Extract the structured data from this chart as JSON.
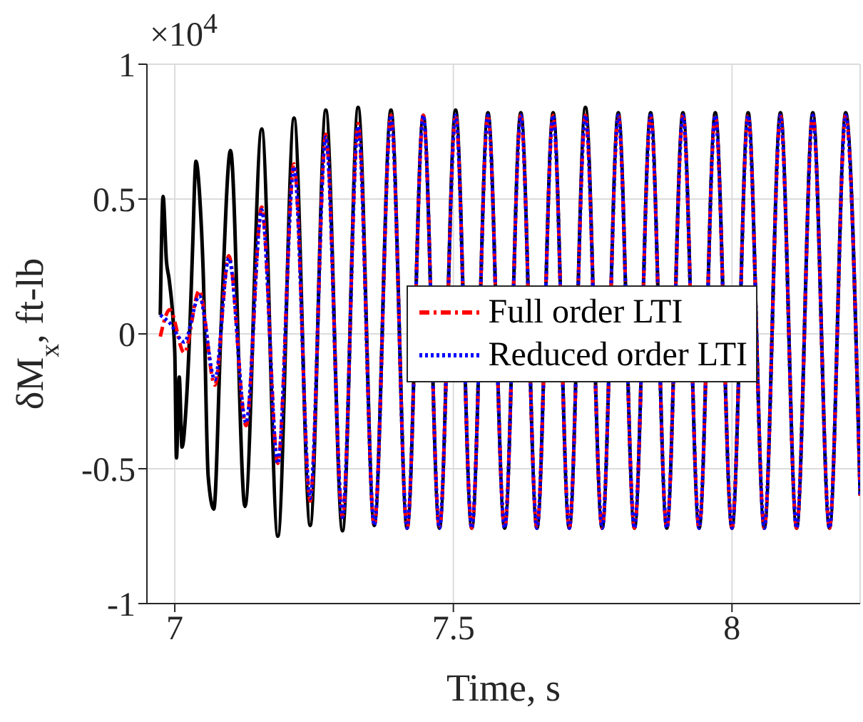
{
  "chart_data": {
    "type": "line",
    "xlabel": "Time, s",
    "ylabel": "δM$_{x}$, ft-lb",
    "annotations": [
      "×10$^{4}$"
    ],
    "xlim": [
      6.95,
      8.23
    ],
    "xticks": [
      7,
      7.5,
      8
    ],
    "ylim": [
      -1,
      1
    ],
    "yticks": [
      -1,
      -0.5,
      0,
      0.5,
      1
    ],
    "grid": true,
    "legend": "right",
    "marker": "none",
    "series": [
      {
        "color": "#000000",
        "line_style": "solid",
        "x": [
          6.974,
          6.979,
          6.985,
          6.99,
          7.0,
          7.003,
          7.008,
          7.013,
          7.02,
          7.027,
          7.032,
          7.038,
          7.045,
          7.051,
          7.06,
          7.07,
          7.083,
          7.1,
          7.126,
          7.156,
          7.185,
          7.214,
          7.243,
          7.271,
          7.301,
          7.329,
          7.358,
          7.388,
          7.417,
          7.446,
          7.475,
          7.504,
          7.533,
          7.562,
          7.592,
          7.621,
          7.65,
          7.679,
          7.708,
          7.737,
          7.767,
          7.796,
          7.825,
          7.854,
          7.883,
          7.912,
          7.941,
          7.97,
          8.0,
          8.029,
          8.058,
          8.087,
          8.116,
          8.145,
          8.175,
          8.204,
          8.23
        ],
        "values": [
          0.07,
          0.51,
          0.27,
          0.2,
          -0.07,
          -0.46,
          -0.16,
          -0.42,
          -0.28,
          0.02,
          0.32,
          0.64,
          0.5,
          0.23,
          -0.53,
          -0.65,
          0.02,
          0.68,
          -0.64,
          0.76,
          -0.75,
          0.8,
          -0.71,
          0.83,
          -0.73,
          0.84,
          -0.71,
          0.83,
          -0.72,
          0.81,
          -0.72,
          0.83,
          -0.72,
          0.82,
          -0.72,
          0.82,
          -0.72,
          0.82,
          -0.72,
          0.84,
          -0.72,
          0.82,
          -0.72,
          0.82,
          -0.72,
          0.82,
          -0.72,
          0.82,
          -0.72,
          0.82,
          -0.72,
          0.82,
          -0.72,
          0.82,
          -0.72,
          0.82,
          -0.6
        ]
      },
      {
        "name": "Full order LTI",
        "color": "#ff0000",
        "line_style": "dashed",
        "x": [
          6.974,
          6.991,
          7.017,
          7.044,
          7.072,
          7.097,
          7.128,
          7.156,
          7.185,
          7.214,
          7.243,
          7.271,
          7.301,
          7.329,
          7.358,
          7.388,
          7.417,
          7.446,
          7.475,
          7.504,
          7.533,
          7.562,
          7.592,
          7.621,
          7.65,
          7.679,
          7.708,
          7.737,
          7.767,
          7.796,
          7.825,
          7.854,
          7.883,
          7.912,
          7.941,
          7.97,
          8.0,
          8.029,
          8.058,
          8.087,
          8.116,
          8.145,
          8.175,
          8.204,
          8.23
        ],
        "values": [
          -0.01,
          0.09,
          -0.07,
          0.16,
          -0.19,
          0.29,
          -0.34,
          0.47,
          -0.48,
          0.63,
          -0.62,
          0.74,
          -0.68,
          0.78,
          -0.71,
          0.81,
          -0.72,
          0.81,
          -0.72,
          0.81,
          -0.72,
          0.81,
          -0.72,
          0.81,
          -0.72,
          0.81,
          -0.72,
          0.81,
          -0.72,
          0.81,
          -0.72,
          0.81,
          -0.72,
          0.81,
          -0.72,
          0.81,
          -0.72,
          0.81,
          -0.72,
          0.81,
          -0.72,
          0.81,
          -0.72,
          0.81,
          -0.6
        ]
      },
      {
        "name": "Reduced order LTI",
        "color": "#0000ff",
        "line_style": "dotted",
        "x": [
          6.974,
          6.991,
          7.017,
          7.044,
          7.072,
          7.097,
          7.128,
          7.156,
          7.185,
          7.214,
          7.243,
          7.271,
          7.301,
          7.329,
          7.358,
          7.388,
          7.417,
          7.446,
          7.475,
          7.504,
          7.533,
          7.562,
          7.592,
          7.621,
          7.65,
          7.679,
          7.708,
          7.737,
          7.767,
          7.796,
          7.825,
          7.854,
          7.883,
          7.912,
          7.941,
          7.97,
          8.0,
          8.029,
          8.058,
          8.087,
          8.116,
          8.145,
          8.175,
          8.204,
          8.23
        ],
        "values": [
          0.07,
          0.04,
          -0.03,
          0.14,
          -0.17,
          0.28,
          -0.33,
          0.46,
          -0.48,
          0.62,
          -0.61,
          0.73,
          -0.68,
          0.77,
          -0.71,
          0.81,
          -0.72,
          0.81,
          -0.72,
          0.81,
          -0.72,
          0.81,
          -0.72,
          0.81,
          -0.72,
          0.81,
          -0.72,
          0.81,
          -0.72,
          0.81,
          -0.72,
          0.81,
          -0.72,
          0.81,
          -0.72,
          0.81,
          -0.72,
          0.81,
          -0.72,
          0.81,
          -0.72,
          0.81,
          -0.72,
          0.81,
          -0.6
        ]
      }
    ]
  }
}
